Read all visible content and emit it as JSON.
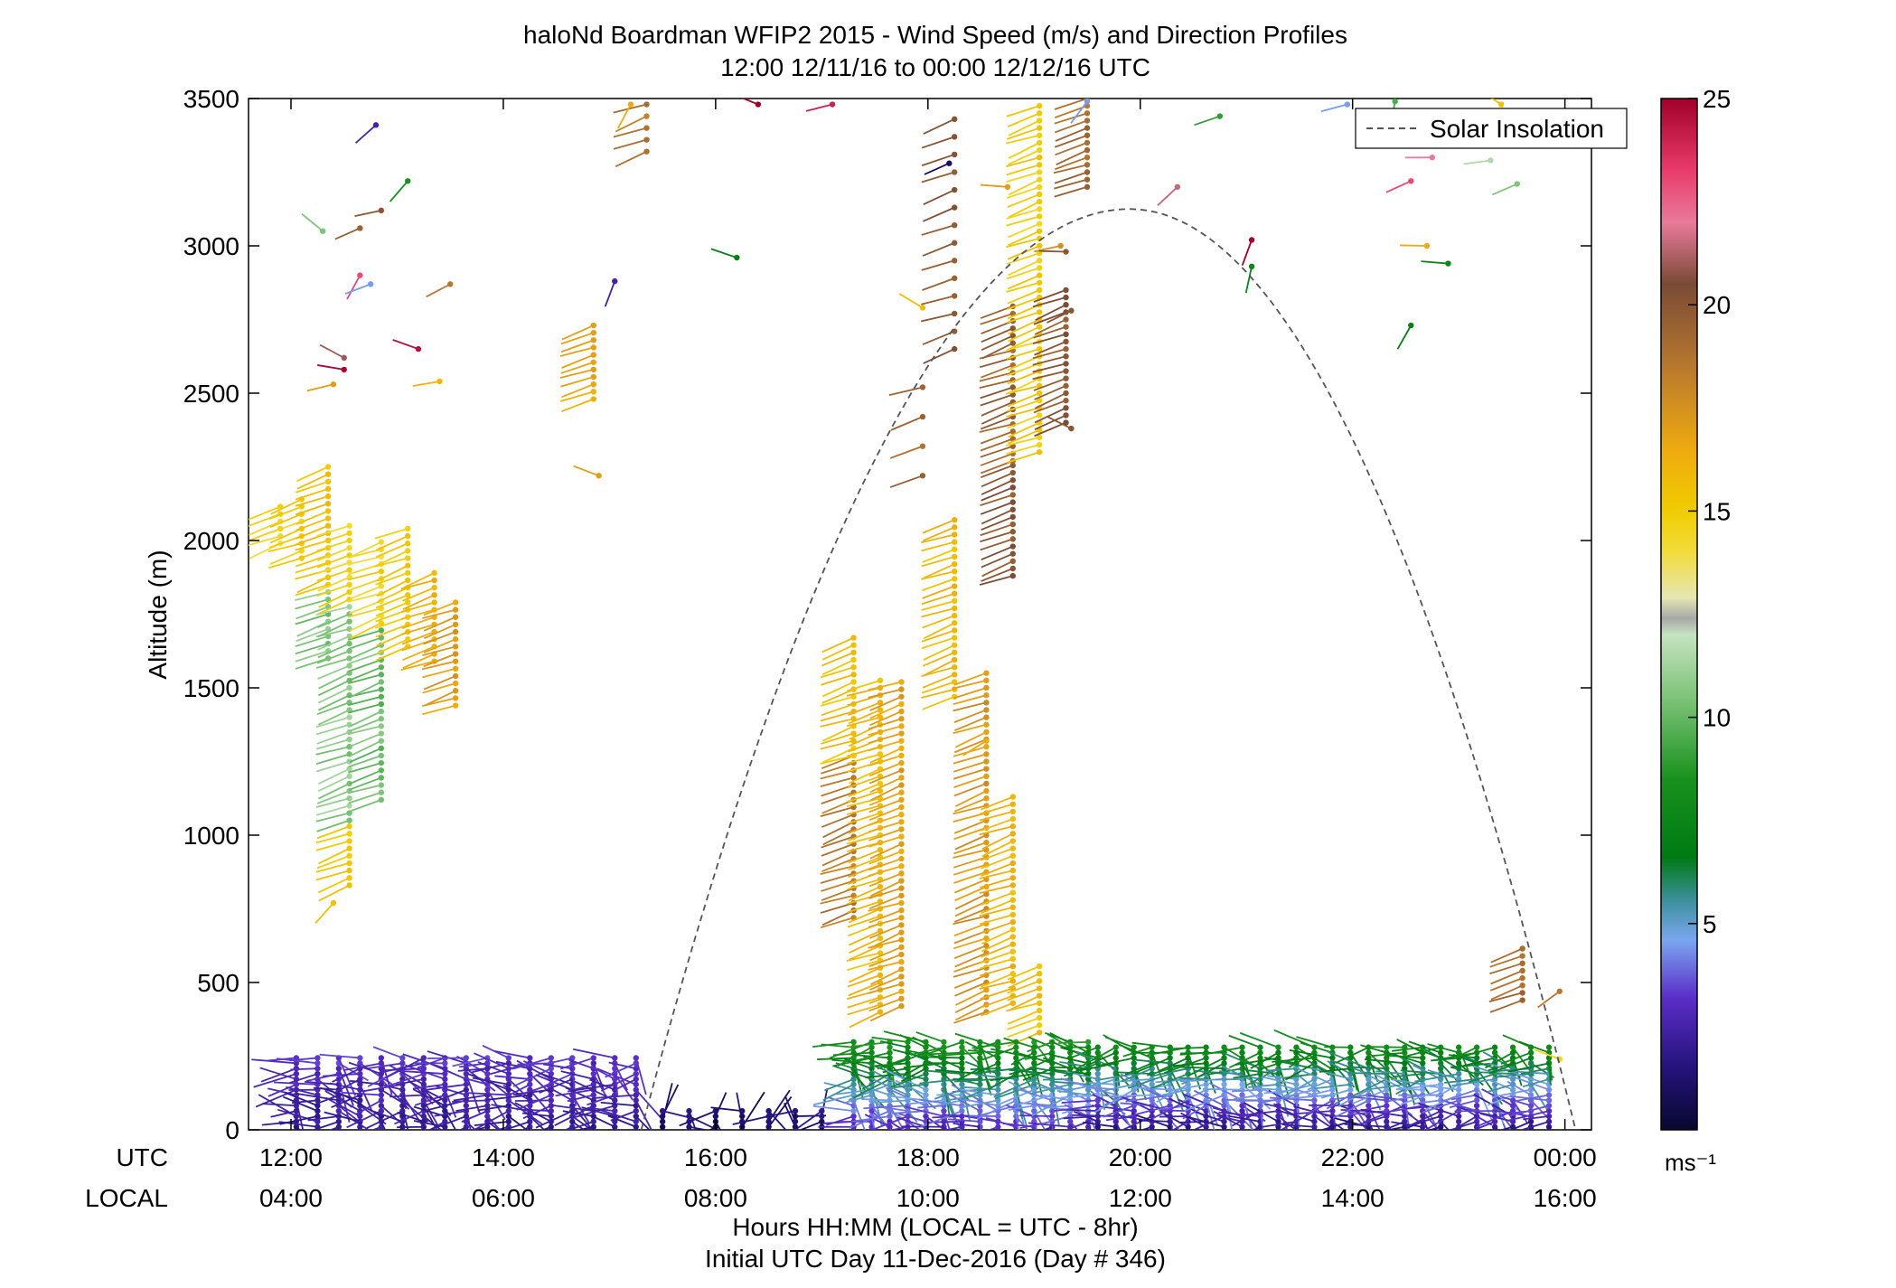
{
  "chart_data": {
    "type": "scatter",
    "title": "haloNd Boardman WFIP2 2015 - Wind Speed (m/s) and Direction Profiles",
    "subtitle": "12:00 12/11/16 to 00:00 12/12/16  UTC",
    "ylabel": "Altitude (m)",
    "xlabel": "Hours HH:MM  (LOCAL = UTC - 8hr)",
    "xlabel2": "Initial UTC Day 11-Dec-2016 (Day # 346)",
    "utc_label": "UTC",
    "local_label": "LOCAL",
    "xlim": [
      12,
      24.25
    ],
    "ylim": [
      0,
      3500
    ],
    "yticks": [
      0,
      500,
      1000,
      1500,
      2000,
      2500,
      3000,
      3500
    ],
    "xticks": [
      {
        "x": 12,
        "utc": "12:00",
        "local": "04:00"
      },
      {
        "x": 14,
        "utc": "14:00",
        "local": "06:00"
      },
      {
        "x": 16,
        "utc": "16:00",
        "local": "08:00"
      },
      {
        "x": 18,
        "utc": "18:00",
        "local": "10:00"
      },
      {
        "x": 20,
        "utc": "20:00",
        "local": "12:00"
      },
      {
        "x": 22,
        "utc": "22:00",
        "local": "14:00"
      },
      {
        "x": 24,
        "utc": "00:00",
        "local": "16:00"
      }
    ],
    "legend": {
      "label": "Solar Insolation",
      "placement": "top-right"
    },
    "solar_insolation": {
      "start": 15.3,
      "peak": 19.9,
      "end": 24.1,
      "peak_altitude": 3125
    },
    "colorbar": {
      "min": 0,
      "max": 25,
      "unit": "ms⁻¹",
      "ticks": [
        5,
        10,
        15,
        20,
        25
      ],
      "stops": [
        {
          "v": 0,
          "c": "#080830"
        },
        {
          "v": 1.5,
          "c": "#24137a"
        },
        {
          "v": 3.2,
          "c": "#5a2ec8"
        },
        {
          "v": 4.6,
          "c": "#7aa6f0"
        },
        {
          "v": 5.6,
          "c": "#3a8f98"
        },
        {
          "v": 6.6,
          "c": "#007a14"
        },
        {
          "v": 8.5,
          "c": "#19911e"
        },
        {
          "v": 10.5,
          "c": "#7fc47a"
        },
        {
          "v": 12.0,
          "c": "#c5e3c0"
        },
        {
          "v": 12.4,
          "c": "#a8a8a8"
        },
        {
          "v": 12.9,
          "c": "#e6e6b4"
        },
        {
          "v": 14.0,
          "c": "#f2dc3c"
        },
        {
          "v": 15.0,
          "c": "#f0cc00"
        },
        {
          "v": 16.5,
          "c": "#eeaa10"
        },
        {
          "v": 18.5,
          "c": "#b8782e"
        },
        {
          "v": 20.5,
          "c": "#7a4a36"
        },
        {
          "v": 22.0,
          "c": "#e87a9a"
        },
        {
          "v": 23.3,
          "c": "#e83a6a"
        },
        {
          "v": 25,
          "c": "#a0002a"
        }
      ]
    },
    "profiles": [
      {
        "t": 11.9,
        "z0": 1990,
        "z1": 2125,
        "dz": 25,
        "s": 14.5
      },
      {
        "t": 12.1,
        "z0": 1940,
        "z1": 2160,
        "dz": 25,
        "s": 14.8
      },
      {
        "t": 12.35,
        "z0": 1600,
        "z1": 2260,
        "dz": 25,
        "s": 15.4,
        "s2": 10.5,
        "split": 1830
      },
      {
        "t": 12.55,
        "z0": 1050,
        "z1": 2060,
        "dz": 25,
        "s": 14.5,
        "s2": 10.8,
        "split": 1800
      },
      {
        "t": 12.55,
        "z0": 830,
        "z1": 1050,
        "dz": 25,
        "s": 15.0
      },
      {
        "t": 12.85,
        "z0": 1120,
        "z1": 2000,
        "dz": 25,
        "s": 14.5,
        "s2": 10.2,
        "split": 1700
      },
      {
        "t": 13.1,
        "z0": 1640,
        "z1": 2060,
        "dz": 25,
        "s": 15.0
      },
      {
        "t": 13.35,
        "z0": 1590,
        "z1": 1900,
        "dz": 25,
        "s": 16.0
      },
      {
        "t": 13.55,
        "z0": 1440,
        "z1": 1810,
        "dz": 25,
        "s": 17.0
      },
      {
        "t": 14.85,
        "z0": 2480,
        "z1": 2750,
        "dz": 25,
        "s": 16.5
      },
      {
        "t": 15.35,
        "z0": 3320,
        "z1": 3480,
        "dz": 40,
        "s": 18.5
      },
      {
        "t": 17.3,
        "z0": 720,
        "z1": 1270,
        "dz": 25,
        "s": 18.5
      },
      {
        "t": 17.3,
        "z0": 1270,
        "z1": 1690,
        "dz": 25,
        "s": 15.5
      },
      {
        "t": 17.55,
        "z0": 400,
        "z1": 1530,
        "dz": 25,
        "s": 15.8
      },
      {
        "t": 17.75,
        "z0": 420,
        "z1": 1530,
        "dz": 25,
        "s": 16.8
      },
      {
        "t": 17.95,
        "z0": 2220,
        "z1": 2530,
        "dz": 100,
        "s": 19.0
      },
      {
        "t": 18.25,
        "z0": 1470,
        "z1": 2090,
        "dz": 25,
        "s": 15.8
      },
      {
        "t": 18.25,
        "z0": 2650,
        "z1": 3470,
        "dz": 60,
        "s": 20.0
      },
      {
        "t": 18.55,
        "z0": 400,
        "z1": 1550,
        "dz": 25,
        "s": 17.3
      },
      {
        "t": 18.8,
        "z0": 1880,
        "z1": 2270,
        "dz": 25,
        "s": 20.0
      },
      {
        "t": 18.8,
        "z0": 2270,
        "z1": 2800,
        "dz": 25,
        "s": 19.5
      },
      {
        "t": 18.8,
        "z0": 430,
        "z1": 1150,
        "dz": 25,
        "s": 16.0
      },
      {
        "t": 19.05,
        "z0": 2300,
        "z1": 3490,
        "dz": 25,
        "s": 15.0
      },
      {
        "t": 19.05,
        "z0": 330,
        "z1": 560,
        "dz": 25,
        "s": 15.5
      },
      {
        "t": 19.3,
        "z0": 2400,
        "z1": 2870,
        "dz": 25,
        "s": 20.0
      },
      {
        "t": 19.5,
        "z0": 3200,
        "z1": 3500,
        "dz": 25,
        "s": 19.0
      },
      {
        "t": 23.6,
        "z0": 440,
        "z1": 620,
        "dz": 25,
        "s": 19.0
      }
    ],
    "surface": [
      {
        "t0": 12.05,
        "t1": 15.35,
        "step": 0.2,
        "top": 260,
        "s": 2.0,
        "s2": 3.2
      },
      {
        "t0": 15.5,
        "t1": 17.15,
        "step": 0.25,
        "top": 70,
        "s": 0.8,
        "s2": 1.6
      },
      {
        "t0": 17.3,
        "t1": 19.6,
        "step": 0.17,
        "top": 300,
        "s": 2.6,
        "s2": 8.5
      },
      {
        "t0": 19.6,
        "t1": 23.95,
        "step": 0.17,
        "top": 290,
        "s": 1.6,
        "s2": 8.0
      }
    ],
    "scattered": [
      {
        "t": 12.8,
        "z": 3410,
        "s": 2.5
      },
      {
        "t": 12.3,
        "z": 3050,
        "s": 10.5
      },
      {
        "t": 13.1,
        "z": 3220,
        "s": 8.5
      },
      {
        "t": 12.85,
        "z": 3120,
        "s": 20.0
      },
      {
        "t": 12.65,
        "z": 3060,
        "s": 19.5
      },
      {
        "t": 12.65,
        "z": 2900,
        "s": 23.0
      },
      {
        "t": 12.75,
        "z": 2870,
        "s": 4.5
      },
      {
        "t": 13.2,
        "z": 2650,
        "s": 24.5
      },
      {
        "t": 12.5,
        "z": 2620,
        "s": 21.0
      },
      {
        "t": 12.5,
        "z": 2580,
        "s": 24.8
      },
      {
        "t": 12.4,
        "z": 2530,
        "s": 17.0
      },
      {
        "t": 13.5,
        "z": 2870,
        "s": 18.5
      },
      {
        "t": 13.4,
        "z": 2540,
        "s": 16.0
      },
      {
        "t": 12.4,
        "z": 770,
        "s": 15.5
      },
      {
        "t": 14.9,
        "z": 2220,
        "s": 17.0
      },
      {
        "t": 15.05,
        "z": 2880,
        "s": 2.5
      },
      {
        "t": 16.2,
        "z": 2960,
        "s": 7.0
      },
      {
        "t": 16.4,
        "z": 3480,
        "s": 25.0
      },
      {
        "t": 17.1,
        "z": 3480,
        "s": 24.0
      },
      {
        "t": 15.2,
        "z": 3480,
        "s": 16.5
      },
      {
        "t": 17.95,
        "z": 2790,
        "s": 15.5
      },
      {
        "t": 18.2,
        "z": 3280,
        "s": 1.0
      },
      {
        "t": 18.75,
        "z": 3200,
        "s": 17.0
      },
      {
        "t": 18.55,
        "z": 1320,
        "s": 16.5
      },
      {
        "t": 19.25,
        "z": 3000,
        "s": 17.5
      },
      {
        "t": 19.3,
        "z": 2980,
        "s": 20.0
      },
      {
        "t": 19.35,
        "z": 2780,
        "s": 20.0
      },
      {
        "t": 19.35,
        "z": 2380,
        "s": 20.0
      },
      {
        "t": 19.5,
        "z": 3490,
        "s": 4.5
      },
      {
        "t": 20.35,
        "z": 3200,
        "s": 21.5
      },
      {
        "t": 21.05,
        "z": 3020,
        "s": 25.0
      },
      {
        "t": 21.05,
        "z": 2930,
        "s": 7.5
      },
      {
        "t": 20.75,
        "z": 3440,
        "s": 9.0
      },
      {
        "t": 21.95,
        "z": 3480,
        "s": 4.5
      },
      {
        "t": 22.4,
        "z": 3490,
        "s": 9.5
      },
      {
        "t": 22.55,
        "z": 3220,
        "s": 23.0
      },
      {
        "t": 22.75,
        "z": 3300,
        "s": 22.0
      },
      {
        "t": 23.2,
        "z": 3410,
        "s": 23.5
      },
      {
        "t": 23.3,
        "z": 3290,
        "s": 11.5
      },
      {
        "t": 22.7,
        "z": 3000,
        "s": 16.5
      },
      {
        "t": 22.9,
        "z": 2940,
        "s": 7.5
      },
      {
        "t": 22.55,
        "z": 2730,
        "s": 7.0
      },
      {
        "t": 23.4,
        "z": 3480,
        "s": 15.5
      },
      {
        "t": 23.55,
        "z": 3210,
        "s": 10.5
      },
      {
        "t": 23.95,
        "z": 470,
        "s": 18.5
      },
      {
        "t": 23.95,
        "z": 240,
        "s": 14.5
      }
    ]
  }
}
